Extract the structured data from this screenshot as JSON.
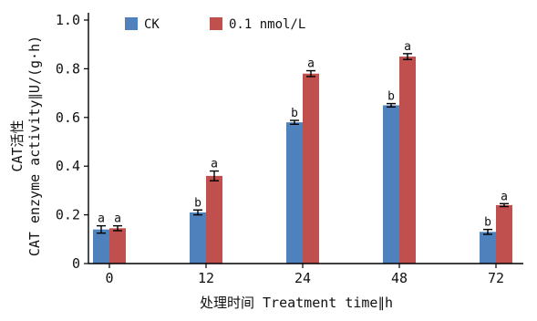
{
  "chart_data": {
    "type": "bar",
    "categories": [
      "0",
      "12",
      "24",
      "48",
      "72"
    ],
    "series": [
      {
        "name": "CK",
        "values": [
          0.14,
          0.21,
          0.58,
          0.65,
          0.13
        ],
        "errors": [
          0.015,
          0.01,
          0.008,
          0.007,
          0.01
        ],
        "letters": [
          "a",
          "b",
          "b",
          "b",
          "b"
        ]
      },
      {
        "name": "0.1 nmol/L",
        "values": [
          0.145,
          0.36,
          0.78,
          0.85,
          0.24
        ],
        "errors": [
          0.01,
          0.02,
          0.012,
          0.012,
          0.006
        ],
        "letters": [
          "a",
          "a",
          "a",
          "a",
          "a"
        ]
      }
    ],
    "colors": [
      "#4f81bd",
      "#c0504d"
    ],
    "ylim": [
      0,
      1.0
    ],
    "yticks": [
      "0",
      "0.2",
      "0.4",
      "0.6",
      "0.8",
      "1.0"
    ],
    "ylabel_cn": "CAT活性",
    "ylabel_en": "CAT enzyme activity∥U/(g·h)",
    "xlabel": "处理时间 Treatment time∥h",
    "legend_placement": "top-left",
    "grid": false
  }
}
